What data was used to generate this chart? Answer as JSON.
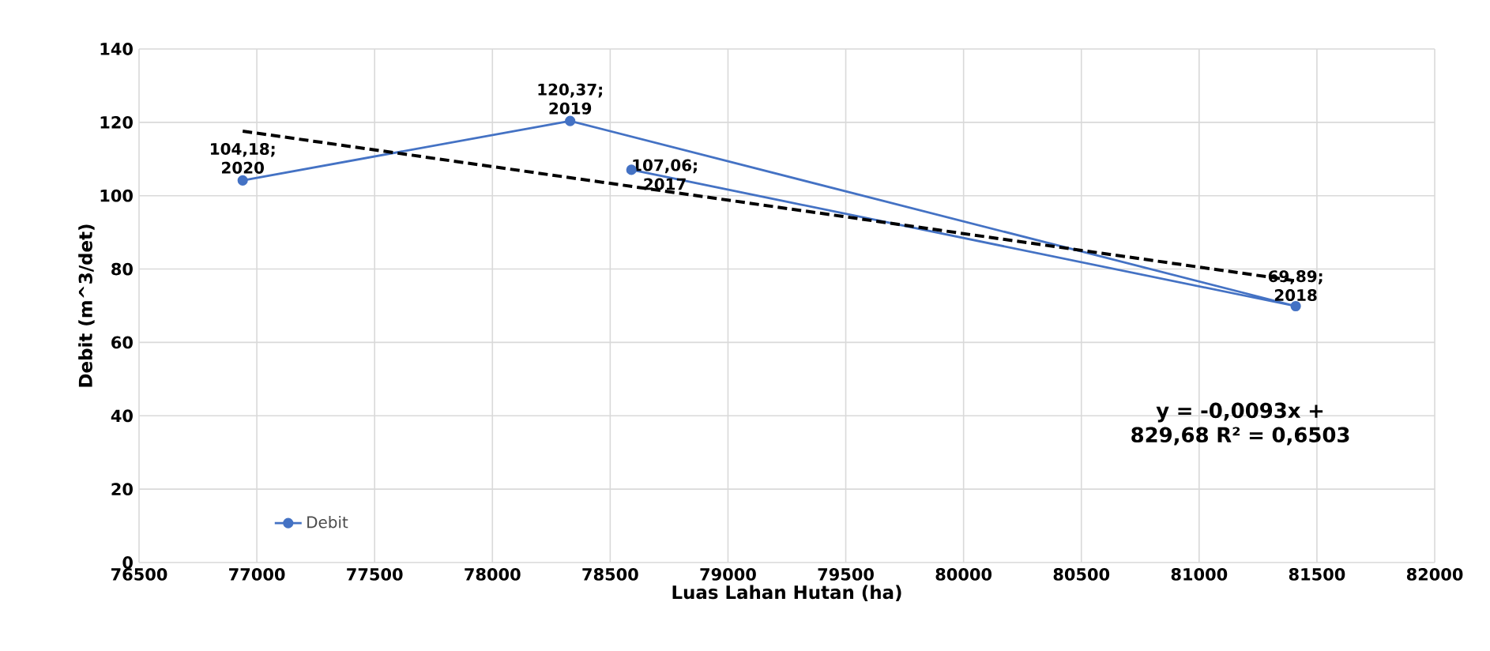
{
  "chart_data": {
    "type": "line",
    "xlabel": "Luas Lahan Hutan (ha)",
    "ylabel": "Debit (m^3/det)",
    "xlim": [
      76500,
      82000
    ],
    "xticks": [
      76500,
      77000,
      77500,
      78000,
      78500,
      79000,
      79500,
      80000,
      80500,
      81000,
      81500,
      82000
    ],
    "ylim": [
      0,
      140
    ],
    "yticks": [
      0,
      20,
      40,
      60,
      80,
      100,
      120,
      140
    ],
    "grid": true,
    "legend": "bottom left",
    "series": [
      {
        "name": "Debit",
        "color": "#4472c4",
        "marker": "circle",
        "x": [
          76940,
          78330,
          81410,
          78590
        ],
        "values": [
          104.18,
          120.37,
          69.89,
          107.06
        ]
      },
      {
        "type": "line",
        "color": "#000000",
        "line_style": "dashed",
        "marker": "none",
        "x": [
          76940,
          81410
        ],
        "values": [
          117.6,
          76.8
        ]
      }
    ],
    "annotations": [
      {
        "text": "104,18; 2020",
        "x": 76940,
        "y": 104.18
      },
      {
        "text": "120,37; 2019",
        "x": 78330,
        "y": 120.37
      },
      {
        "text": "107,06; 2017",
        "x": 78590,
        "y": 107.06
      },
      {
        "text": "69,89; 2018",
        "x": 81410,
        "y": 69.89
      },
      "y = -0,0093x + 829,68 R² = 0,6503"
    ]
  }
}
